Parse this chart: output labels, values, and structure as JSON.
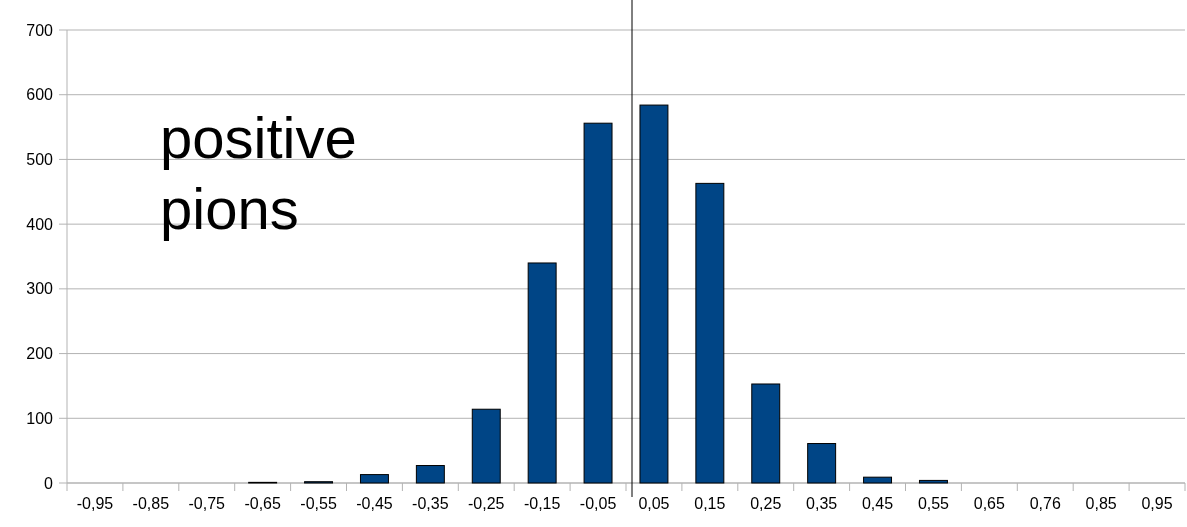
{
  "chart_data": {
    "type": "bar",
    "categories": [
      "-0,95",
      "-0,85",
      "-0,75",
      "-0,65",
      "-0,55",
      "-0,45",
      "-0,35",
      "-0,25",
      "-0,15",
      "-0,05",
      "0,05",
      "0,15",
      "0,25",
      "0,35",
      "0,45",
      "0,55",
      "0,65",
      "0,76",
      "0,85",
      "0,95"
    ],
    "values": [
      0,
      0,
      0,
      1,
      2,
      13,
      27,
      114,
      340,
      556,
      584,
      463,
      153,
      61,
      9,
      4,
      0,
      0,
      0,
      0
    ],
    "color": "#004586",
    "ylim": [
      0,
      700
    ],
    "yticks": [
      0,
      100,
      200,
      300,
      400,
      500,
      600,
      700
    ],
    "grid": "y",
    "ref_lines": [
      {
        "axis": "x",
        "value": "0,05",
        "color": "#000000"
      }
    ],
    "annotations": [
      "positive\npions"
    ]
  }
}
